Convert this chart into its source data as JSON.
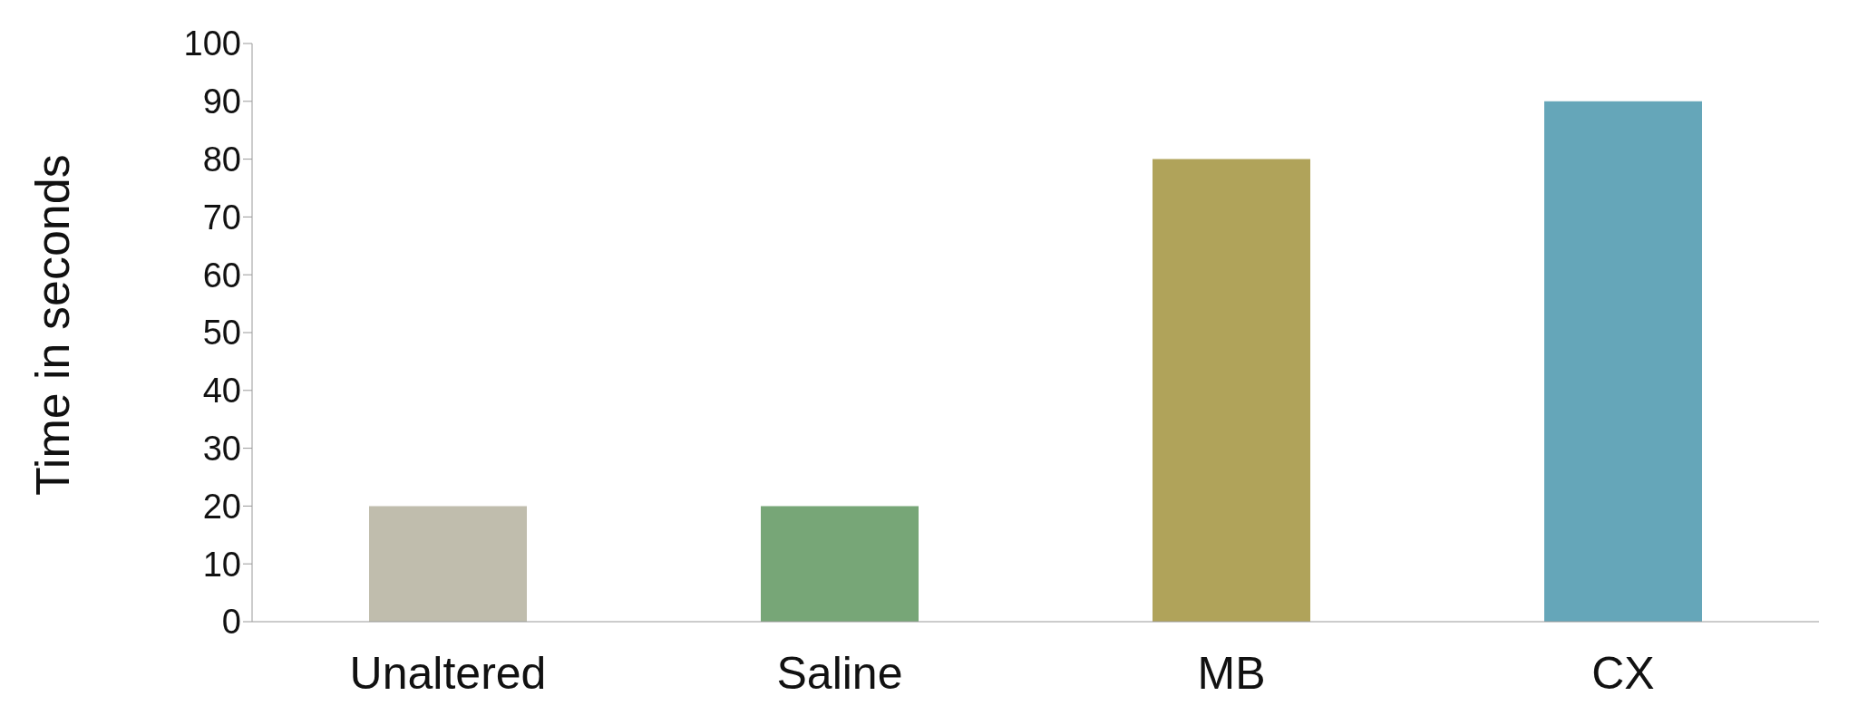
{
  "chart_data": {
    "type": "bar",
    "ylabel": "Time in seconds",
    "categories": [
      "Unaltered",
      "Saline",
      "MB",
      "CX"
    ],
    "values": [
      20,
      20,
      80,
      90
    ],
    "colors": [
      "#c0bdad",
      "#77a677",
      "#b0a35a",
      "#65a6b9"
    ],
    "ylim": [
      0,
      100
    ],
    "yticks": [
      0,
      10,
      20,
      30,
      40,
      50,
      60,
      70,
      80,
      90,
      100
    ],
    "grid": false,
    "legend": false
  }
}
